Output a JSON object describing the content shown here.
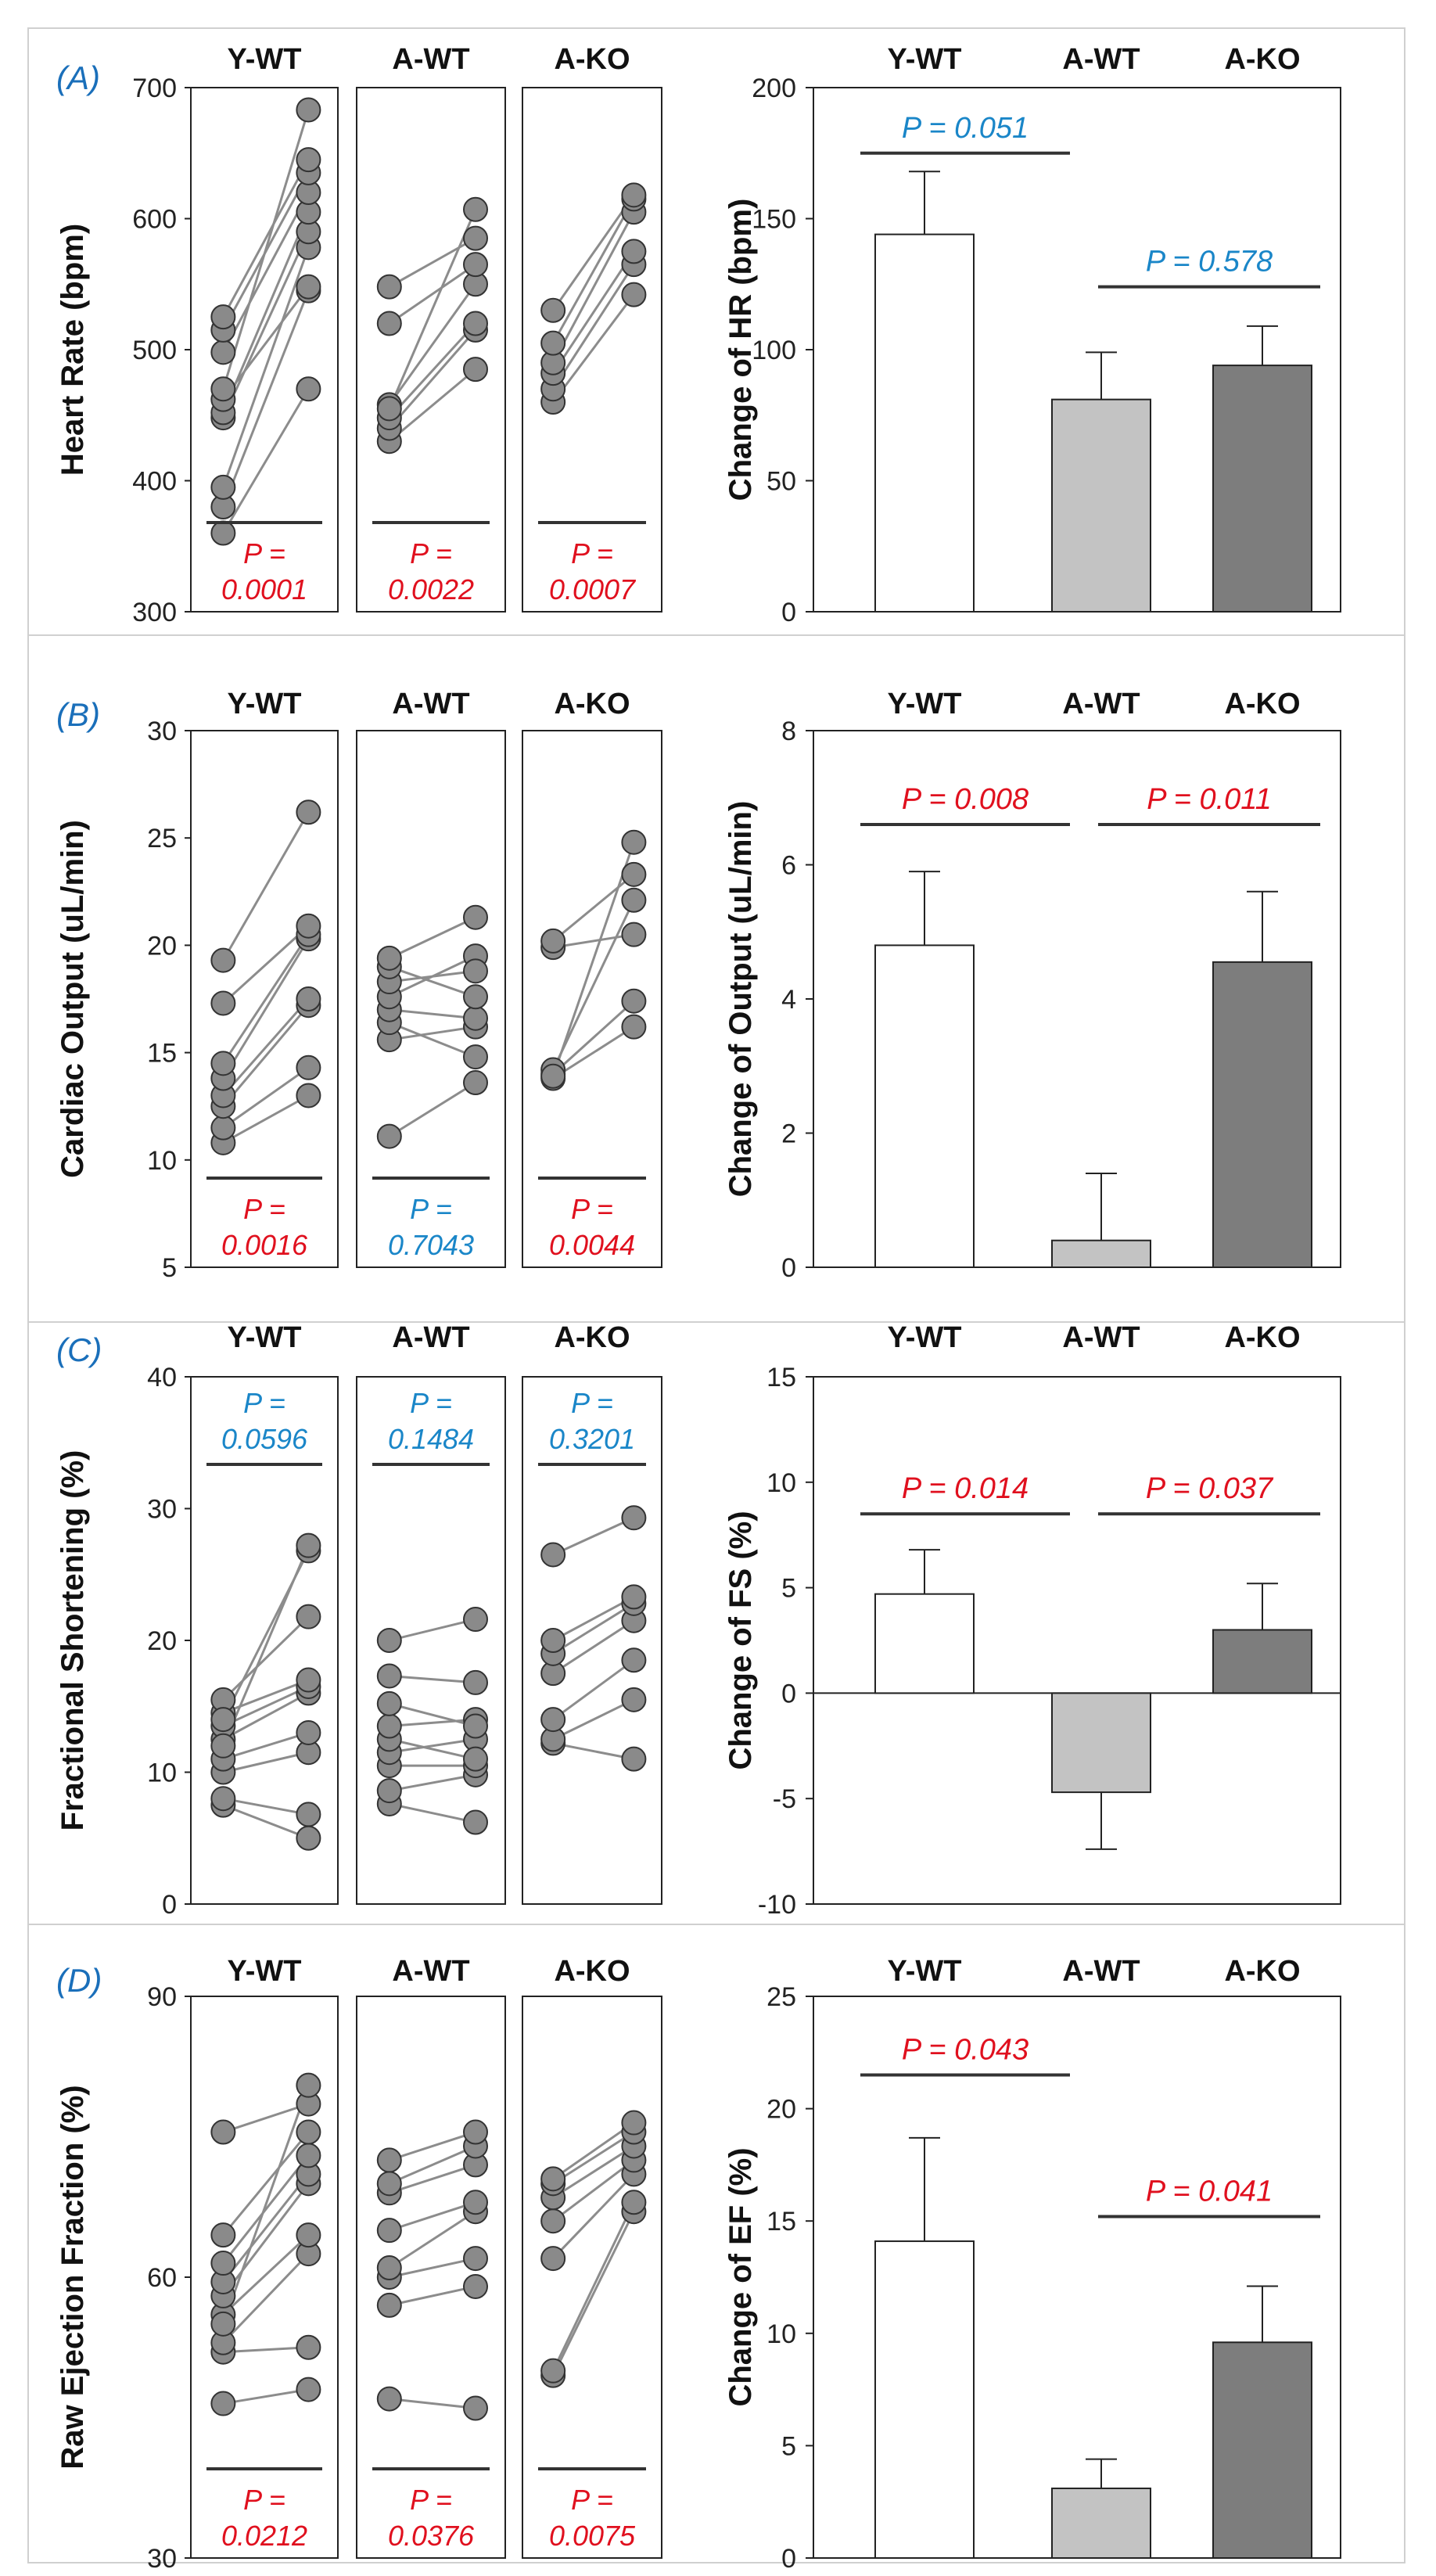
{
  "colors": {
    "sig": "#e0101e",
    "nonsig": "#1a86c8",
    "panelLabel": "#1a6fba",
    "yWtBar": "#ffffff",
    "aWtBar": "#c3c3c3",
    "aKoBar": "#7d7d7d",
    "marker": "#8a8a8a",
    "line": "#8c8c8c"
  },
  "chart_data": [
    {
      "id": "A",
      "label": "(A)",
      "paired": {
        "type": "scatter",
        "ylabel": "Heart Rate (bpm)",
        "ylim": [
          300,
          700
        ],
        "yticks": [
          300,
          400,
          500,
          600,
          700
        ],
        "groups": [
          {
            "name": "Y-WT",
            "p_label": "P =",
            "p_value": "0.0001",
            "p_color": "sig",
            "p_position": "bottom",
            "pairs": [
              [
                360,
                470
              ],
              [
                380,
                545
              ],
              [
                395,
                578
              ],
              [
                448,
                590
              ],
              [
                452,
                605
              ],
              [
                462,
                548
              ],
              [
                498,
                620
              ],
              [
                515,
                635
              ],
              [
                525,
                645
              ],
              [
                470,
                683
              ]
            ]
          },
          {
            "name": "A-WT",
            "p_label": "P =",
            "p_value": "0.0022",
            "p_color": "sig",
            "p_position": "bottom",
            "pairs": [
              [
                430,
                485
              ],
              [
                440,
                515
              ],
              [
                448,
                520
              ],
              [
                458,
                550
              ],
              [
                520,
                565
              ],
              [
                548,
                585
              ],
              [
                455,
                607
              ]
            ]
          },
          {
            "name": "A-KO",
            "p_label": "P =",
            "p_value": "0.0007",
            "p_color": "sig",
            "p_position": "bottom",
            "pairs": [
              [
                460,
                542
              ],
              [
                470,
                565
              ],
              [
                482,
                575
              ],
              [
                490,
                605
              ],
              [
                505,
                615
              ],
              [
                530,
                618
              ]
            ]
          }
        ]
      },
      "bar": {
        "type": "bar",
        "ylabel": "Change of HR (bpm)",
        "ylim": [
          0,
          200
        ],
        "yticks": [
          0,
          50,
          100,
          150,
          200
        ],
        "categories": [
          "Y-WT",
          "A-WT",
          "A-KO"
        ],
        "values": [
          144,
          81,
          94
        ],
        "errors": [
          24,
          18,
          15
        ],
        "comparisons": [
          {
            "from": 0,
            "to": 1,
            "level": 175,
            "text": "P = 0.051",
            "color": "nonsig"
          },
          {
            "from": 1,
            "to": 2,
            "level": 124,
            "text": "P = 0.578",
            "color": "nonsig"
          }
        ]
      }
    },
    {
      "id": "B",
      "label": "(B)",
      "paired": {
        "type": "scatter",
        "ylabel": "Cardiac Output (uL/min)",
        "ylim": [
          5,
          30
        ],
        "yticks": [
          5,
          10,
          15,
          20,
          25,
          30
        ],
        "groups": [
          {
            "name": "Y-WT",
            "p_label": "P =",
            "p_value": "0.0016",
            "p_color": "sig",
            "p_position": "bottom",
            "pairs": [
              [
                10.8,
                13.0
              ],
              [
                11.5,
                14.3
              ],
              [
                12.5,
                17.2
              ],
              [
                13.0,
                17.5
              ],
              [
                13.8,
                20.3
              ],
              [
                14.5,
                20.5
              ],
              [
                17.3,
                20.9
              ],
              [
                19.3,
                26.2
              ]
            ]
          },
          {
            "name": "A-WT",
            "p_label": "P =",
            "p_value": "0.7043",
            "p_color": "nonsig",
            "p_position": "bottom",
            "pairs": [
              [
                11.1,
                13.6
              ],
              [
                15.6,
                16.2
              ],
              [
                16.4,
                14.8
              ],
              [
                17.0,
                16.6
              ],
              [
                17.6,
                19.5
              ],
              [
                18.3,
                18.8
              ],
              [
                19.0,
                17.6
              ],
              [
                19.4,
                21.3
              ]
            ]
          },
          {
            "name": "A-KO",
            "p_label": "P =",
            "p_value": "0.0044",
            "p_color": "sig",
            "p_position": "bottom",
            "pairs": [
              [
                13.8,
                16.2
              ],
              [
                14.0,
                17.4
              ],
              [
                14.2,
                22.1
              ],
              [
                19.9,
                20.5
              ],
              [
                20.2,
                23.3
              ],
              [
                13.9,
                24.8
              ]
            ]
          }
        ]
      },
      "bar": {
        "type": "bar",
        "ylabel": "Change of Output (uL/min)",
        "ylim": [
          0,
          8
        ],
        "yticks": [
          0,
          2,
          4,
          6,
          8
        ],
        "categories": [
          "Y-WT",
          "A-WT",
          "A-KO"
        ],
        "values": [
          4.8,
          0.4,
          4.55
        ],
        "errors": [
          1.1,
          1.0,
          1.05
        ],
        "comparisons": [
          {
            "from": 0,
            "to": 1,
            "level": 6.6,
            "text": "P = 0.008",
            "color": "sig"
          },
          {
            "from": 1,
            "to": 2,
            "level": 6.6,
            "text": "P = 0.011",
            "color": "sig"
          }
        ]
      }
    },
    {
      "id": "C",
      "label": "(C)",
      "paired": {
        "type": "scatter",
        "ylabel": "Fractional Shortening (%)",
        "ylim": [
          0,
          40
        ],
        "yticks": [
          0,
          10,
          20,
          30,
          40
        ],
        "groups": [
          {
            "name": "Y-WT",
            "p_label": "P =",
            "p_value": "0.0596",
            "p_color": "nonsig",
            "p_position": "top",
            "pairs": [
              [
                7.5,
                5.0
              ],
              [
                8.0,
                6.8
              ],
              [
                10.0,
                11.5
              ],
              [
                11.0,
                13.0
              ],
              [
                12.5,
                16.0
              ],
              [
                13.5,
                16.5
              ],
              [
                14.5,
                17.0
              ],
              [
                15.5,
                21.8
              ],
              [
                14.0,
                26.8
              ],
              [
                12.0,
                27.2
              ]
            ]
          },
          {
            "name": "A-WT",
            "p_label": "P =",
            "p_value": "0.1484",
            "p_color": "nonsig",
            "p_position": "top",
            "pairs": [
              [
                7.6,
                6.2
              ],
              [
                8.6,
                9.8
              ],
              [
                10.5,
                10.5
              ],
              [
                11.5,
                12.5
              ],
              [
                12.5,
                11.0
              ],
              [
                13.5,
                14.0
              ],
              [
                15.2,
                13.5
              ],
              [
                17.3,
                16.8
              ],
              [
                20.0,
                21.6
              ]
            ]
          },
          {
            "name": "A-KO",
            "p_label": "P =",
            "p_value": "0.3201",
            "p_color": "nonsig",
            "p_position": "top",
            "pairs": [
              [
                12.2,
                11.0
              ],
              [
                12.5,
                15.5
              ],
              [
                14.0,
                18.5
              ],
              [
                17.5,
                21.5
              ],
              [
                19.0,
                22.8
              ],
              [
                20.0,
                23.3
              ],
              [
                26.5,
                29.3
              ]
            ]
          }
        ]
      },
      "bar": {
        "type": "bar",
        "ylabel": "Change of FS (%)",
        "ylim": [
          -10,
          15
        ],
        "yticks": [
          -10,
          -5,
          0,
          5,
          10,
          15
        ],
        "categories": [
          "Y-WT",
          "A-WT",
          "A-KO"
        ],
        "values": [
          4.7,
          -4.7,
          3.0
        ],
        "errors": [
          2.1,
          2.7,
          2.2
        ],
        "comparisons": [
          {
            "from": 0,
            "to": 1,
            "level": 8.5,
            "text": "P = 0.014",
            "color": "sig"
          },
          {
            "from": 1,
            "to": 2,
            "level": 8.5,
            "text": "P = 0.037",
            "color": "sig"
          }
        ]
      }
    },
    {
      "id": "D",
      "label": "(D)",
      "paired": {
        "type": "scatter",
        "ylabel": "Raw Ejection Fraction (%)",
        "ylim": [
          30,
          90
        ],
        "yticks": [
          30,
          60,
          90
        ],
        "groups": [
          {
            "name": "Y-WT",
            "p_label": "P =",
            "p_value": "0.0212",
            "p_color": "sig",
            "p_position": "bottom",
            "pairs": [
              [
                46.5,
                48.0
              ],
              [
                52.0,
                52.5
              ],
              [
                53.0,
                62.5
              ],
              [
                56.0,
                64.5
              ],
              [
                58.0,
                70.0
              ],
              [
                59.5,
                71.0
              ],
              [
                61.5,
                73.0
              ],
              [
                64.5,
                75.5
              ],
              [
                75.5,
                78.5
              ],
              [
                55.0,
                80.5
              ]
            ]
          },
          {
            "name": "A-WT",
            "p_label": "P =",
            "p_value": "0.0376",
            "p_color": "sig",
            "p_position": "bottom",
            "pairs": [
              [
                47.0,
                46.0
              ],
              [
                57.0,
                59.0
              ],
              [
                60.0,
                62.0
              ],
              [
                61.0,
                67.0
              ],
              [
                65.0,
                68.0
              ],
              [
                69.0,
                72.0
              ],
              [
                70.0,
                74.0
              ],
              [
                72.5,
                75.5
              ]
            ]
          },
          {
            "name": "A-KO",
            "p_label": "P =",
            "p_value": "0.0075",
            "p_color": "sig",
            "p_position": "bottom",
            "pairs": [
              [
                49.5,
                67.0
              ],
              [
                50.0,
                68.0
              ],
              [
                62.0,
                71.0
              ],
              [
                66.0,
                72.5
              ],
              [
                68.5,
                74.0
              ],
              [
                70.0,
                75.5
              ],
              [
                70.5,
                76.5
              ]
            ]
          }
        ]
      },
      "bar": {
        "type": "bar",
        "ylabel": "Change of EF (%)",
        "ylim": [
          0,
          25
        ],
        "yticks": [
          0,
          5,
          10,
          15,
          20,
          25
        ],
        "categories": [
          "Y-WT",
          "A-WT",
          "A-KO"
        ],
        "values": [
          14.1,
          3.1,
          9.6
        ],
        "errors": [
          4.6,
          1.3,
          2.5
        ],
        "comparisons": [
          {
            "from": 0,
            "to": 1,
            "level": 21.5,
            "text": "P = 0.043",
            "color": "sig"
          },
          {
            "from": 1,
            "to": 2,
            "level": 15.2,
            "text": "P = 0.041",
            "color": "sig"
          }
        ]
      }
    }
  ]
}
